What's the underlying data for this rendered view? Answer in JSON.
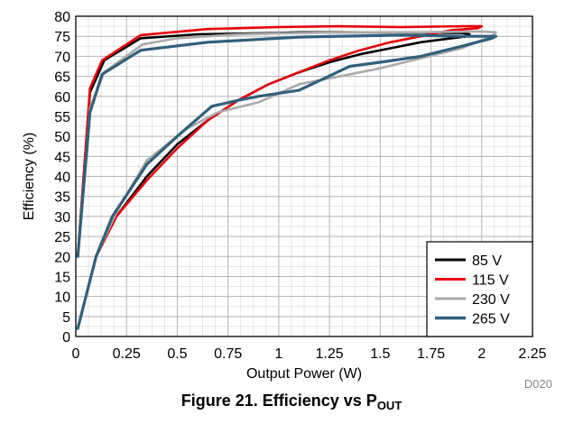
{
  "chart_data": {
    "type": "line",
    "xlabel": "Output Power (W)",
    "ylabel": "Efficiency (%)",
    "xlim": [
      0,
      2.25
    ],
    "ylim": [
      0,
      80
    ],
    "xticks": [
      "0",
      "0.25",
      "0.5",
      "0.75",
      "1",
      "1.25",
      "1.5",
      "1.75",
      "2",
      "2.25"
    ],
    "yticks": [
      "0",
      "5",
      "10",
      "15",
      "20",
      "25",
      "30",
      "35",
      "40",
      "45",
      "50",
      "55",
      "60",
      "65",
      "70",
      "75",
      "80"
    ],
    "grid": true,
    "legend_position": "bottom-right",
    "series": [
      {
        "name": "85 V",
        "color": "#000000",
        "x": [
          0.01,
          0.05,
          0.1,
          0.2,
          0.35,
          0.5,
          0.65,
          0.8,
          0.95,
          1.1,
          1.25,
          1.4,
          1.55,
          1.7,
          1.85,
          1.93,
          1.94,
          1.9,
          1.6,
          1.3,
          1.1,
          1.0,
          0.6,
          0.32,
          0.14,
          0.07,
          0.01
        ],
        "y": [
          2,
          10,
          20,
          30,
          40,
          48,
          54,
          59,
          63,
          66,
          68.5,
          70.5,
          72,
          73.5,
          74.5,
          75,
          75.5,
          75.8,
          76,
          76,
          76,
          75.8,
          75.5,
          74.5,
          69,
          61,
          20
        ]
      },
      {
        "name": "115 V",
        "color": "#e8000a",
        "x": [
          0.01,
          0.05,
          0.1,
          0.2,
          0.35,
          0.5,
          0.65,
          0.8,
          0.95,
          1.1,
          1.25,
          1.4,
          1.55,
          1.7,
          1.85,
          1.98,
          2.0,
          1.9,
          1.6,
          1.3,
          1.0,
          0.65,
          0.32,
          0.13,
          0.07,
          0.01
        ],
        "y": [
          2,
          10,
          20,
          30,
          39,
          47,
          54,
          59,
          63,
          66,
          69,
          71.5,
          73.5,
          75,
          76.5,
          77,
          77.5,
          77.5,
          77.3,
          77.5,
          77.3,
          76.8,
          75.3,
          69,
          62,
          20
        ]
      },
      {
        "name": "230 V",
        "color": "#aaaaaa",
        "x": [
          0.01,
          0.05,
          0.1,
          0.2,
          0.35,
          0.55,
          0.7,
          0.9,
          1.1,
          1.3,
          1.5,
          1.7,
          1.9,
          2.05,
          2.07,
          2.0,
          1.7,
          1.4,
          1.1,
          0.8,
          0.5,
          0.33,
          0.14,
          0.07,
          0.01
        ],
        "y": [
          2,
          10,
          20,
          31,
          44,
          52,
          56,
          58.5,
          63,
          65,
          67,
          69.5,
          72,
          75,
          76,
          76.2,
          76,
          76,
          75.8,
          75.5,
          74.5,
          73,
          66,
          57,
          20
        ]
      },
      {
        "name": "265 V",
        "color": "#31607a",
        "x": [
          0.01,
          0.05,
          0.1,
          0.18,
          0.35,
          0.5,
          0.67,
          0.8,
          0.9,
          1.1,
          1.35,
          1.5,
          1.7,
          1.9,
          2.05,
          2.07,
          1.9,
          1.6,
          1.3,
          1.1,
          1.0,
          0.65,
          0.32,
          0.13,
          0.07,
          0.01
        ],
        "y": [
          2,
          10,
          20,
          30,
          43,
          50,
          57.5,
          59,
          60,
          61.5,
          67.5,
          68.5,
          70,
          72.5,
          74.5,
          75,
          75,
          75.3,
          75,
          74.8,
          74.5,
          73.5,
          71.5,
          65.5,
          56,
          20
        ]
      }
    ],
    "code": "D020",
    "caption_main": "Figure 21. Efficiency vs P",
    "caption_sub": "OUT"
  }
}
